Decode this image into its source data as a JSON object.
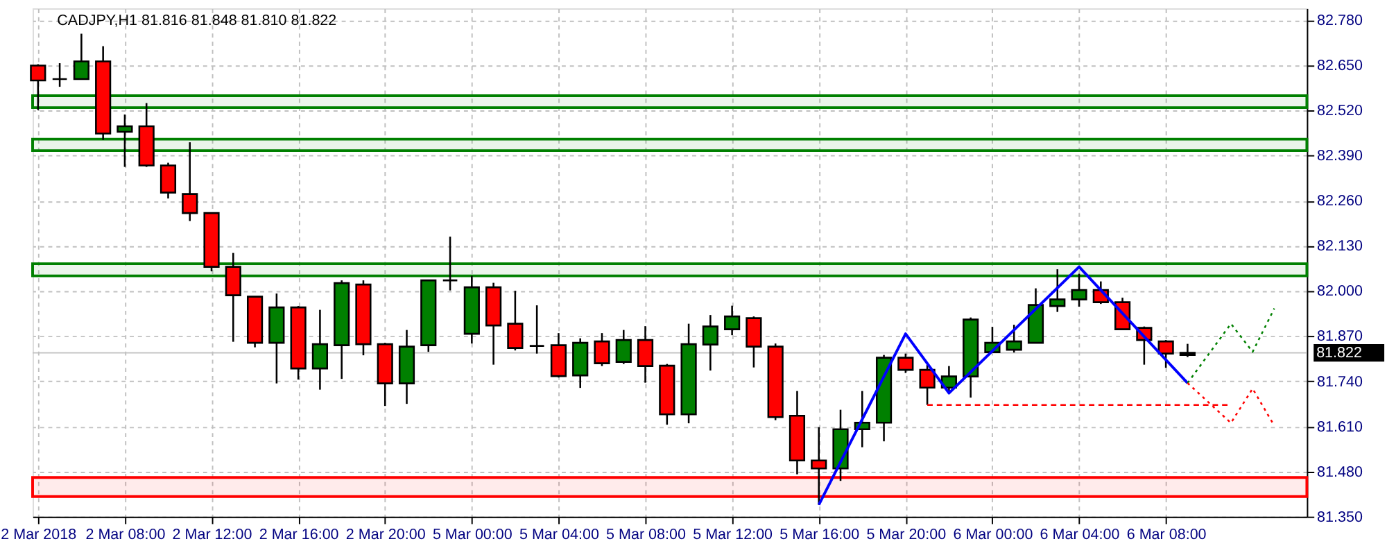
{
  "chart_data": {
    "type": "candlestick",
    "title": "CADJPY,H1  81.816 81.848 81.810 81.822",
    "categories": [
      "2 Mar 2018",
      null,
      null,
      null,
      "2 Mar 08:00",
      null,
      null,
      null,
      "2 Mar 12:00",
      null,
      null,
      null,
      "2 Mar 16:00",
      null,
      null,
      null,
      "2 Mar 20:00",
      null,
      null,
      null,
      "5 Mar 00:00",
      null,
      null,
      null,
      "5 Mar 04:00",
      null,
      null,
      null,
      "5 Mar 08:00",
      null,
      null,
      null,
      "5 Mar 12:00",
      null,
      null,
      null,
      "5 Mar 16:00",
      null,
      null,
      null,
      "5 Mar 20:00",
      null,
      null,
      null,
      "6 Mar 00:00",
      null,
      null,
      null,
      "6 Mar 04:00",
      null,
      null,
      null,
      "6 Mar 08:00",
      null,
      null,
      null,
      null,
      null,
      null
    ],
    "ohlc": [
      [
        82.65,
        82.654,
        82.522,
        82.607
      ],
      [
        82.611,
        82.657,
        82.589,
        82.611
      ],
      [
        82.611,
        82.742,
        82.611,
        82.662
      ],
      [
        82.662,
        82.706,
        82.436,
        82.454
      ],
      [
        82.459,
        82.509,
        82.358,
        82.475
      ],
      [
        82.475,
        82.542,
        82.358,
        82.362
      ],
      [
        82.362,
        82.37,
        82.267,
        82.284
      ],
      [
        82.28,
        82.429,
        82.202,
        82.225
      ],
      [
        82.225,
        82.225,
        82.057,
        82.07
      ],
      [
        82.07,
        82.11,
        81.854,
        81.988
      ],
      [
        81.984,
        81.984,
        81.838,
        81.851
      ],
      [
        81.851,
        81.993,
        81.734,
        81.953
      ],
      [
        81.953,
        81.957,
        81.745,
        81.777
      ],
      [
        81.777,
        81.946,
        81.716,
        81.847
      ],
      [
        81.844,
        82.031,
        81.747,
        82.023
      ],
      [
        82.019,
        82.031,
        81.815,
        81.847
      ],
      [
        81.847,
        81.851,
        81.669,
        81.734
      ],
      [
        81.734,
        81.888,
        81.675,
        81.84
      ],
      [
        81.844,
        82.031,
        81.825,
        82.031
      ],
      [
        82.031,
        82.157,
        82.002,
        82.031
      ],
      [
        81.877,
        82.044,
        81.849,
        82.011
      ],
      [
        82.011,
        82.024,
        81.788,
        81.901
      ],
      [
        81.906,
        82.001,
        81.829,
        81.836
      ],
      [
        81.842,
        81.959,
        81.82,
        81.842
      ],
      [
        81.844,
        81.879,
        81.751,
        81.755
      ],
      [
        81.757,
        81.864,
        81.721,
        81.851
      ],
      [
        81.855,
        81.879,
        81.784,
        81.792
      ],
      [
        81.796,
        81.888,
        81.79,
        81.859
      ],
      [
        81.859,
        81.899,
        81.736,
        81.784
      ],
      [
        81.785,
        81.79,
        81.615,
        81.645
      ],
      [
        81.645,
        81.906,
        81.619,
        81.847
      ],
      [
        81.846,
        81.931,
        81.771,
        81.898
      ],
      [
        81.89,
        81.958,
        81.873,
        81.927
      ],
      [
        81.922,
        81.927,
        81.78,
        81.84
      ],
      [
        81.84,
        81.849,
        81.628,
        81.637
      ],
      [
        81.641,
        81.712,
        81.472,
        81.512
      ],
      [
        81.512,
        81.608,
        81.384,
        81.489
      ],
      [
        81.489,
        81.658,
        81.453,
        81.602
      ],
      [
        81.602,
        81.712,
        81.55,
        81.621
      ],
      [
        81.621,
        81.816,
        81.567,
        81.808
      ],
      [
        81.808,
        81.82,
        81.764,
        81.773
      ],
      [
        81.773,
        81.788,
        81.672,
        81.722
      ],
      [
        81.722,
        81.784,
        81.706,
        81.754
      ],
      [
        81.754,
        81.924,
        81.693,
        81.918
      ],
      [
        81.824,
        81.897,
        81.824,
        81.851
      ],
      [
        81.831,
        81.903,
        81.823,
        81.855
      ],
      [
        81.851,
        82.008,
        81.851,
        81.96
      ],
      [
        81.957,
        82.063,
        81.94,
        81.976
      ],
      [
        81.976,
        82.05,
        81.955,
        82.003
      ],
      [
        82.003,
        82.028,
        81.963,
        81.968
      ],
      [
        81.968,
        81.981,
        81.89,
        81.89
      ],
      [
        81.894,
        81.898,
        81.788,
        81.859
      ],
      [
        81.855,
        81.859,
        81.779,
        81.82
      ],
      [
        81.816,
        81.848,
        81.81,
        81.822
      ],
      null,
      null,
      null,
      null,
      null
    ],
    "colors": [
      "#ff0000",
      "#000000",
      "#008000",
      "#ff0000",
      "#008000",
      "#ff0000",
      "#ff0000",
      "#ff0000",
      "#ff0000",
      "#ff0000",
      "#ff0000",
      "#008000",
      "#ff0000",
      "#008000",
      "#008000",
      "#ff0000",
      "#ff0000",
      "#008000",
      "#008000",
      "#000000",
      "#008000",
      "#ff0000",
      "#ff0000",
      "#000000",
      "#ff0000",
      "#008000",
      "#ff0000",
      "#008000",
      "#ff0000",
      "#ff0000",
      "#008000",
      "#008000",
      "#008000",
      "#ff0000",
      "#ff0000",
      "#ff0000",
      "#ff0000",
      "#008000",
      "#008000",
      "#008000",
      "#ff0000",
      "#ff0000",
      "#008000",
      "#008000",
      "#008000",
      "#008000",
      "#008000",
      "#008000",
      "#008000",
      "#ff0000",
      "#ff0000",
      "#ff0000",
      "#ff0000",
      "#000000",
      null,
      null,
      null,
      null,
      null
    ],
    "series": [
      {
        "type": "line",
        "color": "#0000ff",
        "line_style": "solid",
        "values": [
          null,
          null,
          null,
          null,
          null,
          null,
          null,
          null,
          null,
          null,
          null,
          null,
          null,
          null,
          null,
          null,
          null,
          null,
          null,
          null,
          null,
          null,
          null,
          null,
          null,
          null,
          null,
          null,
          null,
          null,
          null,
          null,
          null,
          null,
          null,
          null,
          81.384,
          null,
          null,
          null,
          81.877,
          null,
          81.706,
          null,
          null,
          null,
          null,
          null,
          82.07,
          null,
          null,
          null,
          null,
          81.735,
          null,
          null,
          null,
          null,
          null
        ]
      },
      {
        "type": "line",
        "color": "#ff0000",
        "line_style": "dashed",
        "values": [
          null,
          null,
          null,
          null,
          null,
          null,
          null,
          null,
          null,
          null,
          null,
          null,
          null,
          null,
          null,
          null,
          null,
          null,
          null,
          null,
          null,
          null,
          null,
          null,
          null,
          null,
          null,
          null,
          null,
          null,
          null,
          null,
          null,
          null,
          null,
          null,
          null,
          null,
          null,
          null,
          null,
          81.672,
          null,
          null,
          null,
          null,
          null,
          null,
          null,
          null,
          null,
          null,
          null,
          null,
          null,
          81.672,
          null,
          null,
          null
        ]
      },
      {
        "type": "line",
        "color": "#008000",
        "line_style": "dotted",
        "values": [
          null,
          null,
          null,
          null,
          null,
          null,
          null,
          null,
          null,
          null,
          null,
          null,
          null,
          null,
          null,
          null,
          null,
          null,
          null,
          null,
          null,
          null,
          null,
          null,
          null,
          null,
          null,
          null,
          null,
          null,
          null,
          null,
          null,
          null,
          null,
          null,
          null,
          null,
          null,
          null,
          null,
          null,
          null,
          null,
          null,
          null,
          null,
          null,
          null,
          null,
          null,
          null,
          null,
          81.735,
          null,
          81.906,
          81.825,
          81.95,
          null
        ]
      },
      {
        "type": "line",
        "color": "#ff0000",
        "line_style": "dotted",
        "values": [
          null,
          null,
          null,
          null,
          null,
          null,
          null,
          null,
          null,
          null,
          null,
          null,
          null,
          null,
          null,
          null,
          null,
          null,
          null,
          null,
          null,
          null,
          null,
          null,
          null,
          null,
          null,
          null,
          null,
          null,
          null,
          null,
          null,
          null,
          null,
          null,
          null,
          null,
          null,
          null,
          null,
          null,
          null,
          null,
          null,
          null,
          null,
          null,
          null,
          null,
          null,
          null,
          null,
          81.735,
          null,
          81.62,
          81.719,
          81.612,
          null
        ]
      }
    ],
    "bands": [
      {
        "axis": "y",
        "from": 82.529,
        "to": 82.563,
        "color": "#008000"
      },
      {
        "axis": "y",
        "from": 82.405,
        "to": 82.438,
        "color": "#008000"
      },
      {
        "axis": "y",
        "from": 82.044,
        "to": 82.079,
        "color": "#008000"
      },
      {
        "axis": "y",
        "from": 81.408,
        "to": 81.463,
        "color": "#ff0000"
      }
    ],
    "ref_lines": [
      {
        "axis": "y",
        "value": 81.822,
        "label": "81.822",
        "color": "#c0c0c0"
      }
    ],
    "ylim": [
      81.35,
      82.815
    ],
    "yticks": [
      {
        "value": 81.35,
        "label": "81.350"
      },
      {
        "value": 81.48,
        "label": "81.480"
      },
      {
        "value": 81.61,
        "label": "81.610"
      },
      {
        "value": 81.74,
        "label": "81.740"
      },
      {
        "value": 81.87,
        "label": "81.870"
      },
      {
        "value": 82.0,
        "label": "82.000"
      },
      {
        "value": 82.13,
        "label": "82.130"
      },
      {
        "value": 82.26,
        "label": "82.260"
      },
      {
        "value": 82.39,
        "label": "82.390"
      },
      {
        "value": 82.52,
        "label": "82.520"
      },
      {
        "value": 82.65,
        "label": "82.650"
      },
      {
        "value": 82.78,
        "label": "82.780"
      }
    ],
    "grid": true
  }
}
